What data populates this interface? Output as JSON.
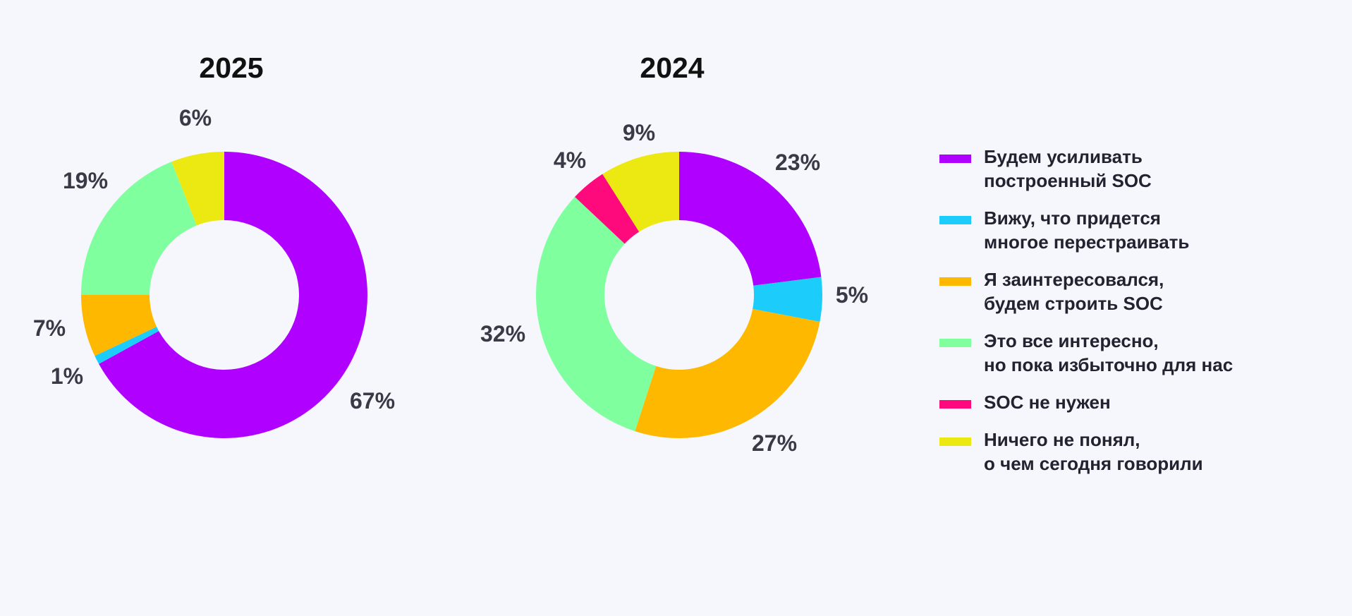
{
  "legend": [
    {
      "key": "strengthen",
      "lines": [
        "Будем усиливать",
        "построенный SOC"
      ],
      "color": "#b000ff"
    },
    {
      "key": "rebuild",
      "lines": [
        "Вижу, что придется",
        "многое перестраивать"
      ],
      "color": "#1ccdfc"
    },
    {
      "key": "will_build",
      "lines": [
        "Я заинтересовался,",
        "будем строить SOC"
      ],
      "color": "#ffb800"
    },
    {
      "key": "excessive",
      "lines": [
        "Это все интересно,",
        "но пока избыточно для нас"
      ],
      "color": "#80ff9f"
    },
    {
      "key": "not_needed",
      "lines": [
        "SOC не нужен"
      ],
      "color": "#ff0a7c"
    },
    {
      "key": "didnt_understand",
      "lines": [
        "Ничего не понял,",
        "о чем сегодня говорили"
      ],
      "color": "#ece812"
    }
  ],
  "chart_data": [
    {
      "type": "pie",
      "donut": true,
      "title": "2025",
      "slices": [
        {
          "key": "strengthen",
          "value": 67,
          "label": "67%"
        },
        {
          "key": "rebuild",
          "value": 1,
          "label": "1%"
        },
        {
          "key": "will_build",
          "value": 7,
          "label": "7%"
        },
        {
          "key": "excessive",
          "value": 19,
          "label": "19%"
        },
        {
          "key": "didnt_understand",
          "value": 6,
          "label": "6%"
        }
      ]
    },
    {
      "type": "pie",
      "donut": true,
      "title": "2024",
      "slices": [
        {
          "key": "strengthen",
          "value": 23,
          "label": "23%"
        },
        {
          "key": "rebuild",
          "value": 5,
          "label": "5%"
        },
        {
          "key": "will_build",
          "value": 27,
          "label": "27%"
        },
        {
          "key": "excessive",
          "value": 32,
          "label": "32%"
        },
        {
          "key": "not_needed",
          "value": 4,
          "label": "4%"
        },
        {
          "key": "didnt_understand",
          "value": 9,
          "label": "9%"
        }
      ],
      "legend_position": "right"
    }
  ]
}
